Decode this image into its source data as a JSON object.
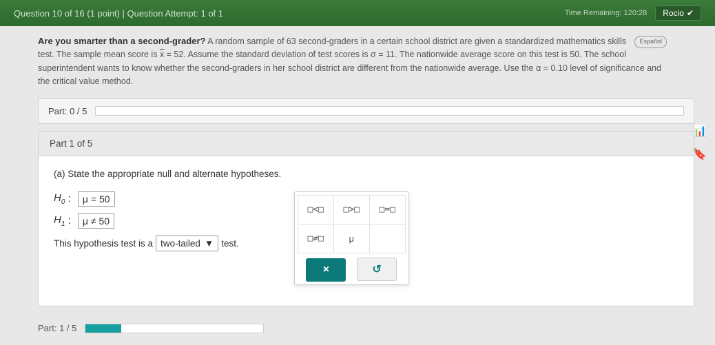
{
  "header": {
    "question_info": "Question 10 of 16 (1 point)  |  Question Attempt: 1 of 1",
    "timer": "Time Remaining: 120:28",
    "student": "Rocio"
  },
  "problem": {
    "lead": "Are you smarter than a second-grader?",
    "body_1": " A random sample of 63 second-graders in a certain school district are given a standardized mathematics skills test. The sample mean score is ",
    "xbar": "x",
    "eq1": " = 52. Assume the standard deviation of test scores is σ = 11. The nationwide average score on this test is 50. The school superintendent wants to know whether the second-graders in her school district are different from the nationwide average. Use the α = 0.10 level of significance and the critical value method.",
    "espanol": "Español"
  },
  "parts": {
    "progress_label": "Part: 0 / 5",
    "part_header": "Part 1 of 5",
    "instruction": "(a) State the appropriate null and alternate hypotheses.",
    "h0_label": "H",
    "h0_sub": "0",
    "h0_value": "μ = 50",
    "h1_label": "H",
    "h1_sub": "1",
    "h1_value": "μ ≠ 50",
    "tail_1": "This hypothesis test is a ",
    "tail_value": "two-tailed",
    "tail_2": " test.",
    "bottom_label": "Part: 1 / 5"
  },
  "palette": {
    "lt": "□<□",
    "gt": "□>□",
    "eq": "□=□",
    "ne": "□≠□",
    "mu": "μ",
    "clear": "×",
    "reset": "↺"
  },
  "colors": {
    "header_bg": "#2e6b2e",
    "teal": "#0d7a7a"
  }
}
